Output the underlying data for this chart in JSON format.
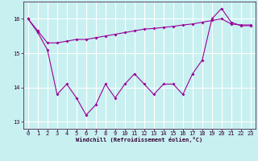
{
  "xlabel": "Windchill (Refroidissement éolien,°C)",
  "background_color": "#c8f0f0",
  "line_color": "#990099",
  "grid_color": "#ffffff",
  "x": [
    0,
    1,
    2,
    3,
    4,
    5,
    6,
    7,
    8,
    9,
    10,
    11,
    12,
    13,
    14,
    15,
    16,
    17,
    18,
    19,
    20,
    21,
    22,
    23
  ],
  "windchill": [
    16.0,
    15.6,
    15.1,
    13.8,
    14.1,
    13.7,
    13.2,
    13.5,
    14.1,
    13.7,
    14.1,
    14.4,
    14.1,
    13.8,
    14.1,
    14.1,
    13.8,
    14.4,
    14.8,
    16.0,
    16.3,
    15.9,
    15.8,
    15.8
  ],
  "temperature": [
    16.0,
    15.65,
    15.3,
    15.3,
    15.35,
    15.4,
    15.4,
    15.45,
    15.5,
    15.55,
    15.6,
    15.65,
    15.7,
    15.72,
    15.75,
    15.78,
    15.82,
    15.85,
    15.9,
    15.95,
    16.0,
    15.85,
    15.82,
    15.82
  ],
  "ylim": [
    12.8,
    16.5
  ],
  "yticks": [
    13,
    14,
    15,
    16
  ],
  "xlim": [
    -0.5,
    23.5
  ],
  "tick_fontsize": 5,
  "xlabel_fontsize": 5,
  "marker_size": 2
}
